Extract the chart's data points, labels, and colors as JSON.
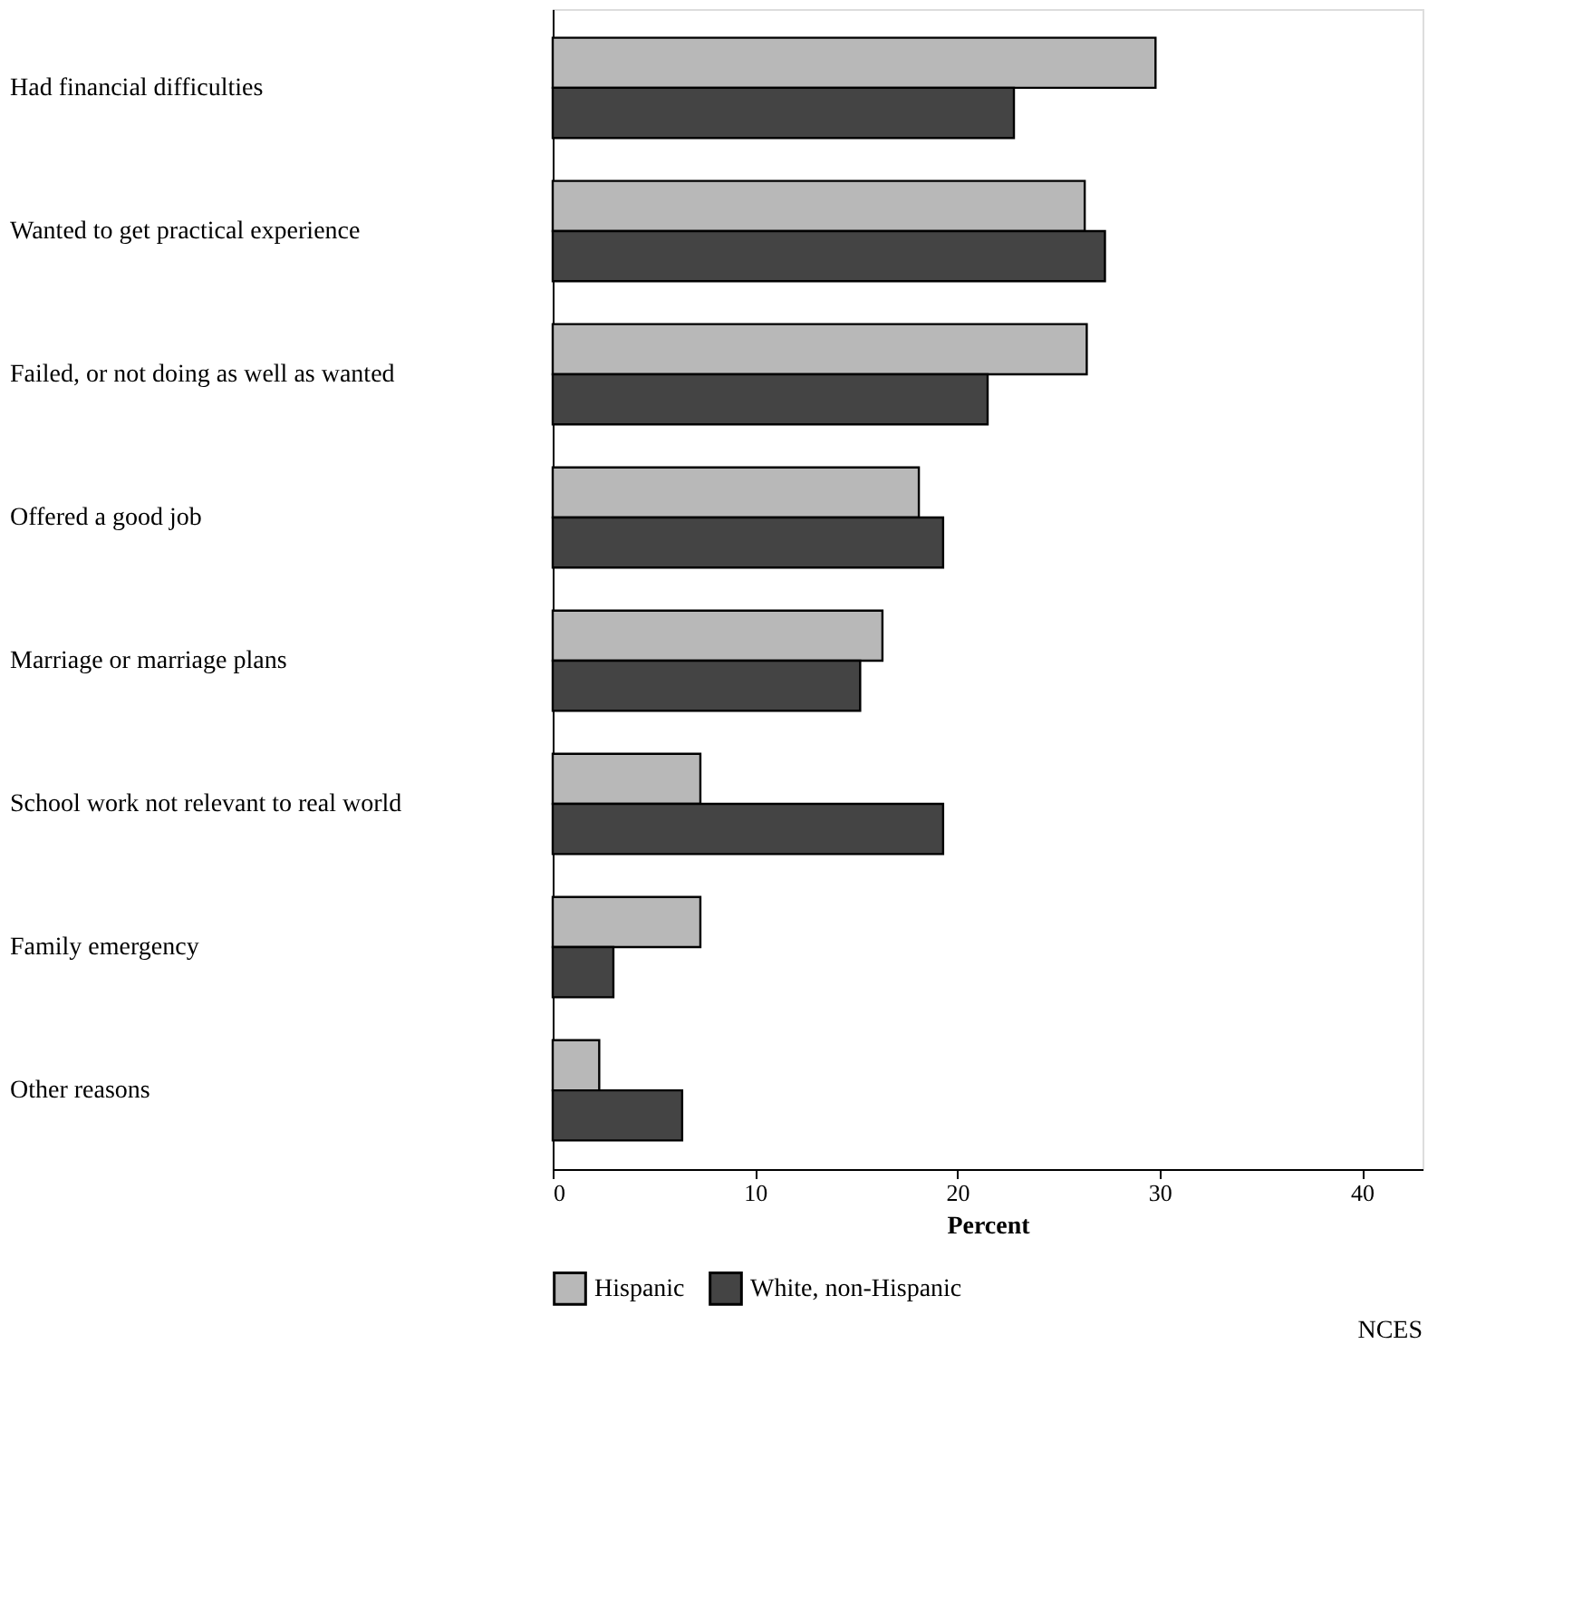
{
  "chart_data": {
    "type": "bar",
    "orientation": "horizontal",
    "xlabel": "Percent",
    "categories": [
      "Had financial difficulties",
      "Wanted to get practical experience",
      "Failed, or not doing as well as wanted",
      "Offered a good job",
      "Marriage or marriage plans",
      "School work not relevant to real world",
      "Family emergency",
      "Other reasons"
    ],
    "series": [
      {
        "name": "Hispanic",
        "color": "#b8b8b8",
        "values": [
          29.8,
          26.3,
          26.4,
          18.1,
          16.3,
          7.3,
          7.3,
          2.3
        ]
      },
      {
        "name": "White, non-Hispanic",
        "color": "#444444",
        "values": [
          22.8,
          27.3,
          21.5,
          19.3,
          15.2,
          19.3,
          3.0,
          6.4
        ]
      }
    ],
    "xlim": [
      0,
      43
    ],
    "xticks": [
      0,
      10,
      20,
      30,
      40
    ],
    "grid": false,
    "legend": "bottom",
    "annotations": [
      "NCES"
    ]
  }
}
